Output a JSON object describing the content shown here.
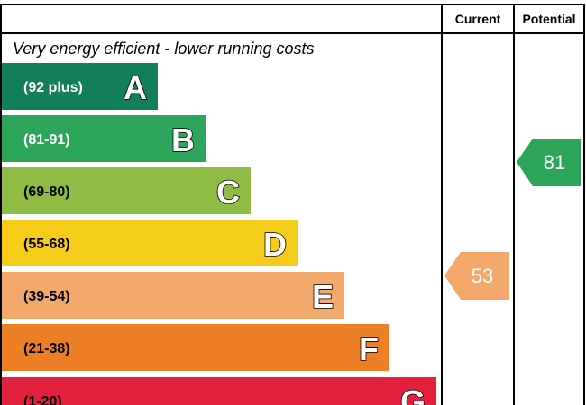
{
  "chart_data": {
    "type": "bar",
    "columns": {
      "current": "Current",
      "potential": "Potential"
    },
    "top_caption": "Very energy efficient - lower running costs",
    "bands": [
      {
        "letter": "A",
        "range": "(92 plus)",
        "color": "#137e5a",
        "text_color": "#ffffff"
      },
      {
        "letter": "B",
        "range": "(81-91)",
        "color": "#2ca55b",
        "text_color": "#ffffff"
      },
      {
        "letter": "C",
        "range": "(69-80)",
        "color": "#8fbc44",
        "text_color": "#000000"
      },
      {
        "letter": "D",
        "range": "(55-68)",
        "color": "#f5cc1a",
        "text_color": "#000000"
      },
      {
        "letter": "E",
        "range": "(39-54)",
        "color": "#f2a96b",
        "text_color": "#000000"
      },
      {
        "letter": "F",
        "range": "(21-38)",
        "color": "#ed8027",
        "text_color": "#000000"
      },
      {
        "letter": "G",
        "range": "(1-20)",
        "color": "#e3213e",
        "text_color": "#000000"
      }
    ],
    "current": {
      "value": "53",
      "band": "E",
      "color": "#f2a96b"
    },
    "potential": {
      "value": "81",
      "band": "B",
      "color": "#2ca55b"
    }
  }
}
